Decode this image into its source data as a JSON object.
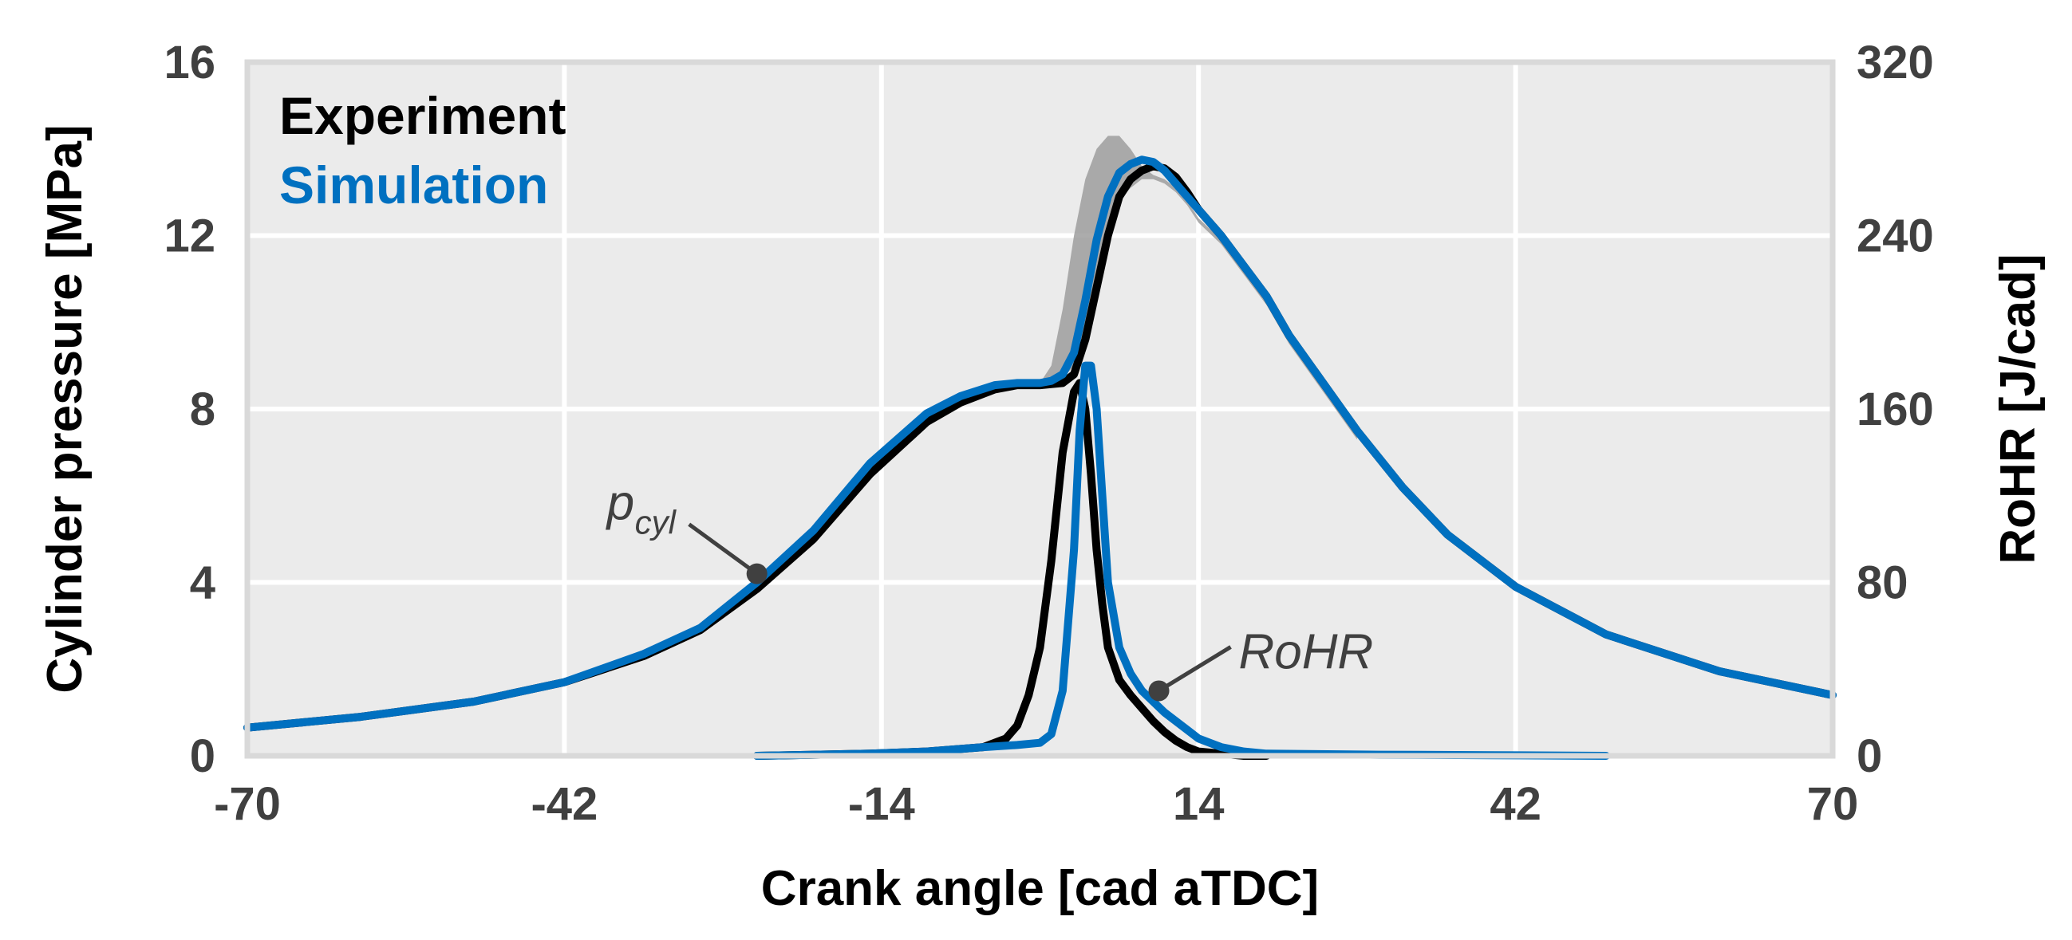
{
  "chart_data": {
    "type": "line",
    "title": "",
    "xlabel": "Crank angle [cad aTDC]",
    "ylabel": "Cylinder pressure [MPa]",
    "y2label": "RoHR [J/cad]",
    "xlim": [
      -70,
      70
    ],
    "ylim": [
      0,
      16
    ],
    "y2lim": [
      0,
      320
    ],
    "x_ticks": [
      "-70",
      "-42",
      "-14",
      "14",
      "42",
      "70"
    ],
    "y_ticks": [
      "0",
      "4",
      "8",
      "12",
      "16"
    ],
    "y2_ticks": [
      "0",
      "80",
      "160",
      "240",
      "320"
    ],
    "grid": true,
    "legend": {
      "placement": "top-left",
      "entries": [
        {
          "label": "Experiment",
          "color": "#000000"
        },
        {
          "label": "Simulation",
          "color": "#0070C0"
        }
      ]
    },
    "colors": {
      "experiment": "#000000",
      "simulation": "#0070C0",
      "band": "#9E9E9E",
      "plot_bg": "#EBEBEB",
      "grid": "#FFFFFF",
      "frame": "#D9D9D9",
      "annotation": "#404040"
    },
    "annotations": [
      {
        "label_main": "p",
        "label_sub": "cyl",
        "x": -25,
        "y": 4.2,
        "axis": "left"
      },
      {
        "label_main": "RoHR",
        "label_sub": "",
        "x": 10.5,
        "y": 30,
        "axis": "right"
      }
    ],
    "series": [
      {
        "name": "Experiment",
        "kind": "pressure",
        "axis": "left",
        "color": "#000000",
        "x": [
          -70,
          -60,
          -50,
          -42,
          -35,
          -30,
          -25,
          -20,
          -15,
          -10,
          -7,
          -4,
          -2,
          0,
          2,
          3,
          4,
          5,
          6,
          7,
          8,
          9,
          10,
          11,
          12,
          13,
          14,
          16,
          18,
          20,
          22,
          25,
          28,
          32,
          36,
          42,
          50,
          60,
          70
        ],
        "y": [
          0.65,
          0.9,
          1.25,
          1.7,
          2.3,
          2.9,
          3.85,
          5.0,
          6.5,
          7.7,
          8.15,
          8.45,
          8.55,
          8.55,
          8.6,
          8.8,
          9.6,
          10.8,
          12.0,
          12.9,
          13.3,
          13.5,
          13.6,
          13.55,
          13.35,
          13.0,
          12.6,
          12.0,
          11.3,
          10.6,
          9.7,
          8.6,
          7.5,
          6.2,
          5.1,
          3.9,
          2.8,
          1.95,
          1.4
        ]
      },
      {
        "name": "Simulation",
        "kind": "pressure",
        "axis": "left",
        "color": "#0070C0",
        "x": [
          -70,
          -60,
          -50,
          -42,
          -35,
          -30,
          -25,
          -20,
          -15,
          -10,
          -7,
          -4,
          -2,
          0,
          1,
          2,
          3,
          4,
          5,
          6,
          7,
          8,
          9,
          10,
          11,
          12,
          13,
          14,
          16,
          18,
          20,
          22,
          25,
          28,
          32,
          36,
          42,
          50,
          60,
          70
        ],
        "y": [
          0.65,
          0.9,
          1.25,
          1.7,
          2.35,
          2.95,
          4.0,
          5.2,
          6.75,
          7.9,
          8.3,
          8.55,
          8.6,
          8.6,
          8.65,
          8.8,
          9.3,
          10.5,
          11.9,
          12.9,
          13.45,
          13.65,
          13.75,
          13.7,
          13.5,
          13.2,
          12.9,
          12.6,
          12.0,
          11.3,
          10.6,
          9.7,
          8.6,
          7.5,
          6.2,
          5.1,
          3.9,
          2.8,
          1.95,
          1.4
        ]
      },
      {
        "name": "Experiment",
        "kind": "rohr",
        "axis": "right",
        "color": "#000000",
        "x": [
          -25,
          -15,
          -10,
          -5,
          -3,
          -2,
          -1,
          0,
          1,
          2,
          3,
          3.5,
          4,
          4.5,
          5,
          5.5,
          6,
          7,
          8,
          9,
          10,
          11,
          12,
          13,
          14,
          16,
          18,
          20
        ],
        "y": [
          0,
          1,
          2,
          4,
          8,
          14,
          28,
          50,
          90,
          140,
          168,
          172,
          160,
          130,
          95,
          70,
          50,
          35,
          28,
          22,
          16,
          11,
          7,
          4,
          2,
          1,
          0,
          0
        ]
      },
      {
        "name": "Simulation",
        "kind": "rohr",
        "axis": "right",
        "color": "#0070C0",
        "x": [
          -25,
          -15,
          -10,
          -5,
          -2,
          0,
          1,
          2,
          3,
          3.5,
          4,
          4.5,
          5,
          5.5,
          6,
          7,
          8,
          9,
          10,
          11,
          12,
          13,
          14,
          16,
          18,
          20,
          30,
          40,
          50
        ],
        "y": [
          0,
          1,
          2,
          4,
          5,
          6,
          10,
          30,
          95,
          150,
          180,
          180,
          160,
          120,
          80,
          50,
          38,
          30,
          25,
          20,
          16,
          12,
          8,
          4,
          2,
          1,
          0.5,
          0.3,
          0
        ]
      }
    ],
    "variability_band": {
      "name": "Experiment range",
      "axis": "left",
      "color": "#9E9E9E",
      "x": [
        0,
        1,
        2,
        3,
        4,
        5,
        6,
        7,
        8,
        9,
        10,
        11,
        12,
        13,
        14,
        16,
        18,
        20,
        22,
        25,
        28
      ],
      "upper": [
        8.6,
        9.0,
        10.3,
        12.0,
        13.3,
        14.0,
        14.3,
        14.3,
        14.0,
        13.6,
        13.4,
        13.3,
        13.1,
        12.8,
        12.4,
        11.9,
        11.2,
        10.5,
        9.6,
        8.5,
        7.4
      ],
      "lower": [
        8.5,
        8.55,
        8.7,
        9.0,
        9.6,
        10.6,
        11.8,
        12.8,
        13.1,
        13.3,
        13.3,
        13.2,
        13.0,
        12.7,
        12.3,
        11.8,
        11.1,
        10.4,
        9.5,
        8.4,
        7.3
      ]
    }
  }
}
